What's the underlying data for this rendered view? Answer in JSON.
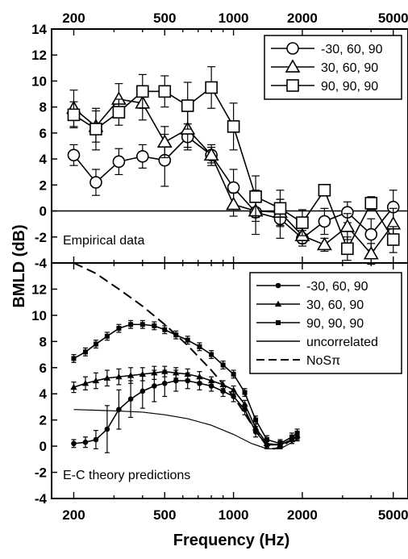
{
  "figure": {
    "ylabel": "BMLD (dB)",
    "xlabel": "Frequency (Hz)",
    "x_tick_labels": [
      "200",
      "500",
      "1000",
      "2000",
      "5000"
    ],
    "y_tick_labels": [
      "14",
      "12",
      "10",
      "8",
      "6",
      "4",
      "2",
      "0",
      "-2",
      "-4"
    ]
  },
  "chart_data": [
    {
      "type": "line",
      "panel_label": "Empirical data",
      "xscale": "log",
      "xlim": [
        160,
        5800
      ],
      "ylim": [
        -4,
        14
      ],
      "x_ticks": [
        200,
        500,
        1000,
        2000,
        5000
      ],
      "y_ticks": [
        14,
        12,
        10,
        8,
        6,
        4,
        2,
        0,
        -2,
        -4
      ],
      "zero_line": true,
      "legend_position": "top-right",
      "series": [
        {
          "name": "-30, 60, 90",
          "marker": "circle",
          "x": [
            200,
            250,
            315,
            400,
            500,
            630,
            800,
            1000,
            1250,
            1600,
            2000,
            2500,
            3150,
            4000,
            5000
          ],
          "y": [
            4.3,
            2.2,
            3.8,
            4.2,
            3.9,
            5.7,
            4.3,
            1.8,
            -0.1,
            -0.6,
            -2.1,
            -0.8,
            -0.1,
            -1.8,
            0.3
          ],
          "err": [
            0.8,
            1.0,
            1.0,
            0.9,
            2.0,
            1.0,
            0.8,
            1.4,
            1.7,
            1.5,
            0.6,
            1.0,
            0.8,
            1.2,
            1.3
          ]
        },
        {
          "name": "30, 60, 90",
          "marker": "triangle",
          "x": [
            200,
            250,
            315,
            400,
            500,
            630,
            800,
            1000,
            1250,
            1600,
            2000,
            2500,
            3150,
            4000,
            5000
          ],
          "y": [
            7.9,
            6.5,
            8.6,
            8.3,
            5.3,
            6.3,
            4.3,
            0.5,
            0.0,
            -0.1,
            -1.9,
            -2.6,
            -1.2,
            -3.3,
            -1.0
          ],
          "err": [
            1.4,
            1.2,
            1.2,
            1.3,
            1.2,
            1.4,
            0.6,
            0.9,
            0.8,
            1.0,
            0.6,
            0.5,
            1.0,
            0.8,
            1.2
          ]
        },
        {
          "name": "90, 90, 90",
          "marker": "square",
          "x": [
            200,
            250,
            315,
            400,
            500,
            630,
            800,
            1000,
            1250,
            1600,
            2000,
            2500,
            3150,
            4000,
            5000
          ],
          "y": [
            7.4,
            6.3,
            7.6,
            9.2,
            9.2,
            8.1,
            9.5,
            6.5,
            1.1,
            0.2,
            -0.9,
            1.6,
            -2.9,
            0.6,
            -2.2
          ],
          "err": [
            1.0,
            1.6,
            1.0,
            1.3,
            1.2,
            1.8,
            1.6,
            1.8,
            1.6,
            1.4,
            1.0,
            0.3,
            0.9,
            0.5,
            1.0
          ]
        }
      ]
    },
    {
      "type": "line",
      "panel_label": "E-C theory predictions",
      "xscale": "log",
      "xlim": [
        160,
        5800
      ],
      "ylim": [
        -4,
        14
      ],
      "x_ticks": [
        200,
        500,
        1000,
        2000,
        5000
      ],
      "y_ticks": [
        12,
        10,
        8,
        6,
        4,
        2,
        0,
        -2,
        -4
      ],
      "legend_position": "top-right",
      "series": [
        {
          "name": "-30, 60, 90",
          "marker": "dot",
          "x": [
            200,
            225,
            250,
            280,
            315,
            355,
            400,
            450,
            500,
            560,
            630,
            710,
            800,
            900,
            1000,
            1120,
            1250,
            1400,
            1600,
            1800,
            1900
          ],
          "y": [
            0.2,
            0.3,
            0.5,
            1.3,
            2.8,
            3.6,
            4.2,
            4.6,
            4.8,
            5.0,
            5.0,
            4.8,
            4.6,
            4.2,
            3.8,
            2.8,
            1.1,
            0.1,
            0.1,
            0.5,
            0.7
          ],
          "err": [
            0.3,
            0.4,
            0.7,
            1.8,
            1.5,
            1.4,
            1.3,
            1.2,
            1.0,
            0.8,
            0.6,
            0.5,
            0.4,
            0.4,
            0.4,
            0.4,
            0.4,
            0.3,
            0.3,
            0.3,
            0.3
          ]
        },
        {
          "name": "30, 60, 90",
          "marker": "filled-triangle",
          "x": [
            200,
            225,
            250,
            280,
            315,
            355,
            400,
            450,
            500,
            560,
            630,
            710,
            800,
            900,
            1000,
            1120,
            1250,
            1400,
            1600,
            1800,
            1900
          ],
          "y": [
            4.5,
            4.8,
            5.0,
            5.2,
            5.3,
            5.4,
            5.5,
            5.6,
            5.7,
            5.6,
            5.5,
            5.3,
            5.0,
            4.7,
            4.3,
            3.2,
            1.4,
            0.2,
            0.1,
            0.5,
            0.8
          ],
          "err": [
            0.4,
            0.5,
            0.6,
            0.6,
            0.6,
            0.6,
            0.5,
            0.5,
            0.4,
            0.4,
            0.4,
            0.4,
            0.3,
            0.3,
            0.3,
            0.3,
            0.3,
            0.3,
            0.3,
            0.3,
            0.3
          ]
        },
        {
          "name": "90, 90, 90",
          "marker": "filled-square",
          "x": [
            200,
            225,
            250,
            280,
            315,
            355,
            400,
            450,
            500,
            560,
            630,
            710,
            800,
            900,
            1000,
            1120,
            1250,
            1400,
            1600,
            1800,
            1900
          ],
          "y": [
            6.7,
            7.2,
            7.8,
            8.4,
            9.0,
            9.3,
            9.3,
            9.2,
            8.9,
            8.5,
            8.1,
            7.6,
            7.0,
            6.2,
            5.5,
            4.1,
            2.0,
            0.5,
            0.2,
            0.7,
            1.0
          ],
          "err": [
            0.3,
            0.3,
            0.3,
            0.3,
            0.3,
            0.3,
            0.3,
            0.3,
            0.3,
            0.3,
            0.3,
            0.3,
            0.3,
            0.3,
            0.3,
            0.3,
            0.3,
            0.3,
            0.3,
            0.3,
            0.3
          ]
        },
        {
          "name": "uncorrelated",
          "marker": "none",
          "line_style": "solid-thin",
          "x": [
            200,
            300,
            400,
            500,
            630,
            800,
            1000,
            1200,
            1400,
            1600,
            1900
          ],
          "y": [
            2.8,
            2.7,
            2.6,
            2.4,
            2.1,
            1.6,
            0.9,
            0.2,
            -0.2,
            -0.2,
            0.5
          ]
        },
        {
          "name": "NoSπ",
          "marker": "none",
          "line_style": "dashed",
          "x": [
            200,
            250,
            315,
            400,
            500,
            630,
            800,
            1000,
            1250,
            1400,
            1500,
            1600,
            1800,
            1900
          ],
          "y": [
            14.0,
            13.2,
            12.0,
            10.7,
            9.3,
            7.7,
            5.8,
            3.8,
            1.2,
            0.0,
            -0.2,
            -0.1,
            0.5,
            0.8
          ]
        }
      ]
    }
  ]
}
